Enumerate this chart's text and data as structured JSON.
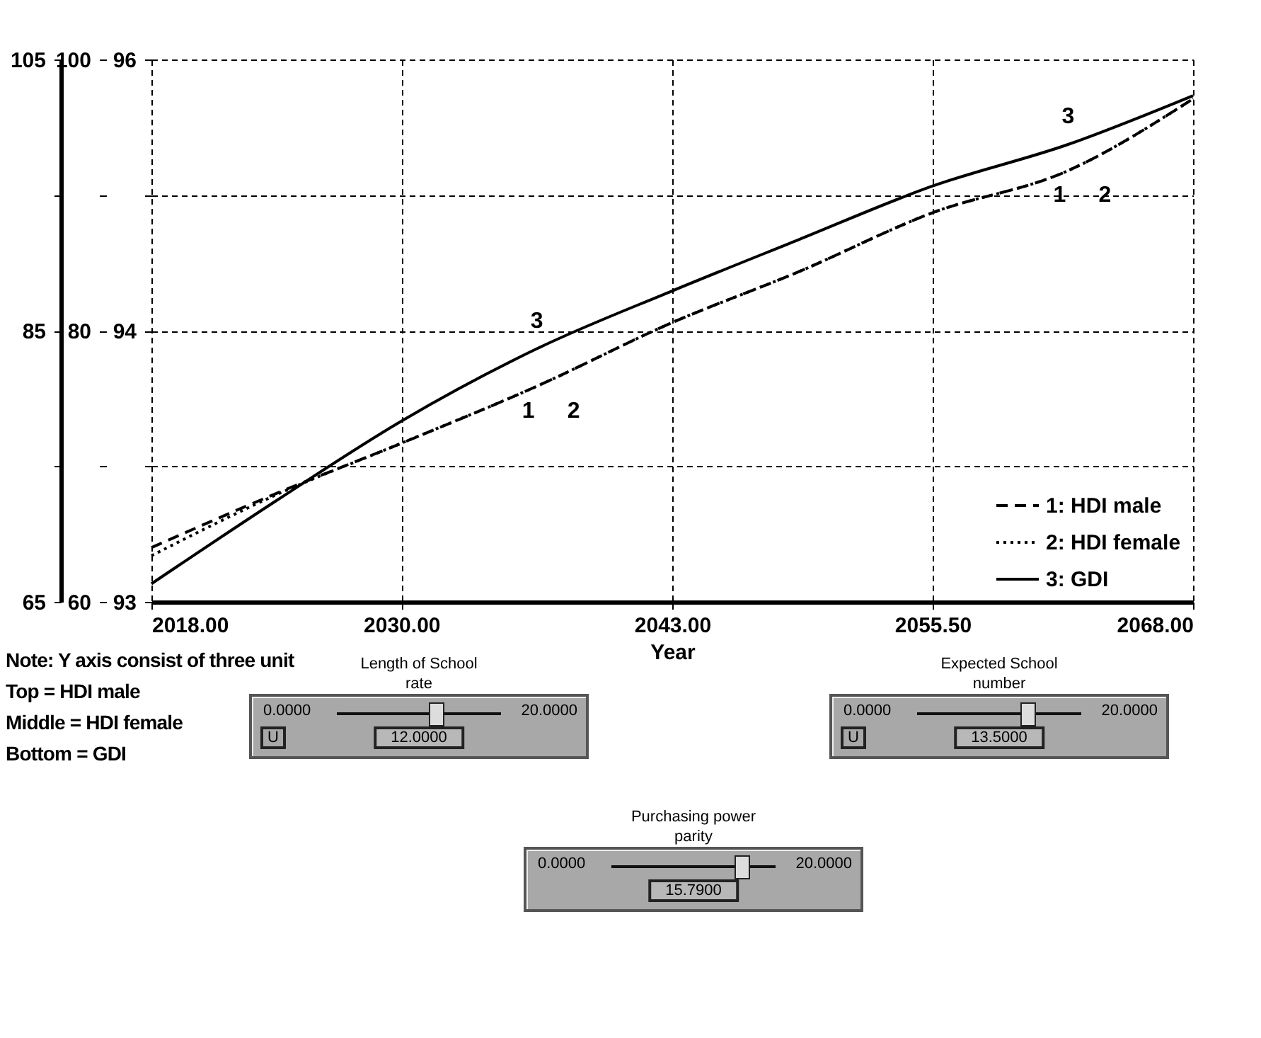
{
  "chart_data": [
    {
      "type": "line",
      "xlabel": "Year",
      "x": [
        2018,
        2024,
        2030,
        2036.5,
        2043,
        2049,
        2055.5,
        2062,
        2068
      ],
      "xlim": [
        2018,
        2068
      ],
      "xticks": [
        {
          "value": 2018,
          "label": "2018.00"
        },
        {
          "value": 2030,
          "label": "2030.00"
        },
        {
          "value": 2043,
          "label": "2043.00"
        },
        {
          "value": 2055.5,
          "label": "2055.50"
        },
        {
          "value": 2068,
          "label": "2068.00"
        }
      ],
      "ylim": [
        65,
        105
      ],
      "yticks": [
        65,
        {
          "value": 75,
          "label": null
        },
        85,
        {
          "value": 95,
          "label": null
        },
        105
      ],
      "y2lim": [
        60,
        100
      ],
      "y2ticks": [
        60,
        {
          "value": 70,
          "label": null
        },
        80,
        {
          "value": 90,
          "label": null
        },
        100
      ],
      "y3lim": [
        93,
        96
      ],
      "y3ticks": [
        93,
        {
          "value": 93.75,
          "label": null
        },
        {
          "value": 94.5,
          "label": "94"
        },
        {
          "value": 95.25,
          "label": null
        },
        96
      ],
      "series": [
        {
          "name": "1: HDI male",
          "color": "#000000",
          "line_style": "dashed",
          "values": [
            69.0,
            73.0,
            76.7,
            80.9,
            85.6,
            89.3,
            93.7,
            96.8,
            102.1
          ]
        },
        {
          "name": "2: HDI female",
          "color": "#000000",
          "line_style": "dotted",
          "axis": "y2",
          "values": [
            63.4,
            67.9,
            71.7,
            75.9,
            80.6,
            84.3,
            88.7,
            91.8,
            97.1
          ]
        },
        {
          "name": "3: GDI",
          "color": "#000000",
          "line_style": "solid",
          "axis": "y3",
          "values": [
            93.1,
            93.56,
            94.0,
            94.4,
            94.72,
            95.0,
            95.3,
            95.53,
            95.8
          ]
        }
      ],
      "grid": true,
      "legend": "bottom right",
      "marker": "none",
      "annotations": [
        "3",
        "1",
        "2",
        "3",
        "1",
        "2",
        "Note: Y axis consist of three unit",
        "Top = HDI male",
        "Middle = HDI female",
        "Bottom = GDI"
      ]
    },
    {
      "type": "other",
      "annotations": [
        "Length of School rate",
        "0.0000",
        "20.0000",
        "12.0000",
        "U",
        "Expected School number",
        "0.0000",
        "20.0000",
        "13.5000",
        "U",
        "Purchasing power parity",
        "0.0000",
        "20.0000",
        "15.7900"
      ]
    }
  ]
}
